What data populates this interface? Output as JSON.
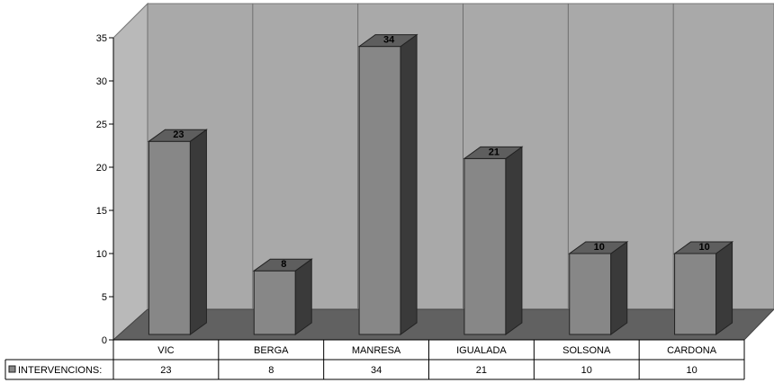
{
  "chart_data": {
    "type": "bar",
    "title": "",
    "xlabel": "",
    "ylabel": "",
    "categories": [
      "VIC",
      "BERGA",
      "MANRESA",
      "IGUALADA",
      "SOLSONA",
      "CARDONA"
    ],
    "series": [
      {
        "name": "INTERVENCIONS:",
        "values": [
          23,
          8,
          34,
          21,
          10,
          10
        ]
      }
    ],
    "ylim": [
      0,
      35
    ],
    "yticks": [
      0,
      5,
      10,
      15,
      20,
      25,
      30,
      35
    ],
    "grid": true,
    "legend": "data-table-left",
    "colors": {
      "back_wall": "#a9a9a9",
      "floor": "#616161",
      "bar_front": "#878787",
      "bar_side": "#3a3a3a",
      "bar_top": "#5e5e5e",
      "gridline": "#6f6f6f"
    }
  }
}
